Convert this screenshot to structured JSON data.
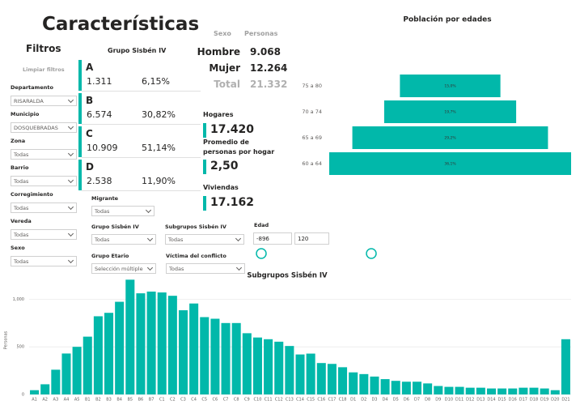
{
  "title": "Características",
  "filters": {
    "title": "Filtros",
    "clear": "Limpiar filtros",
    "items": [
      {
        "label": "Departamento",
        "value": "RISARALDA"
      },
      {
        "label": "Municipio",
        "value": "DOSQUEBRADAS"
      },
      {
        "label": "Zona",
        "value": "Todas"
      },
      {
        "label": "Barrio",
        "value": "Todas"
      },
      {
        "label": "Corregimiento",
        "value": "Todas"
      },
      {
        "label": "Vereda",
        "value": "Todas"
      },
      {
        "label": "Sexo",
        "value": "Todas"
      }
    ]
  },
  "grupo": {
    "title": "Grupo Sisbén IV",
    "cards": [
      {
        "letter": "A",
        "count": "1.311",
        "pct": "6,15%"
      },
      {
        "letter": "B",
        "count": "6.574",
        "pct": "30,82%"
      },
      {
        "letter": "C",
        "count": "10.909",
        "pct": "51,14%"
      },
      {
        "letter": "D",
        "count": "2.538",
        "pct": "11,90%"
      }
    ]
  },
  "sexo": {
    "headers": [
      "Sexo",
      "Personas"
    ],
    "rows": [
      [
        "Hombre",
        "9.068"
      ],
      [
        "Mujer",
        "12.264"
      ],
      [
        "Total",
        "21.332"
      ]
    ]
  },
  "kpis": [
    {
      "label": "Hogares",
      "value": "17.420"
    },
    {
      "label": "Promedio de personas por hogar",
      "value": "2,50"
    },
    {
      "label": "Viviendas",
      "value": "17.162"
    }
  ],
  "slicers": [
    {
      "label": "Migrante",
      "value": "Todas"
    },
    {
      "label": "Grupo Sisbén IV",
      "value": "Todas"
    },
    {
      "label": "Subgrupos Sisbén IV",
      "value": "Todas"
    },
    {
      "label": "Grupo Etario",
      "value": "Selección múltiple"
    },
    {
      "label": "Víctima del conflicto",
      "value": "Todas"
    }
  ],
  "edad": {
    "label": "Edad",
    "min": "-896",
    "max": "120"
  },
  "chart_data": [
    {
      "type": "bar",
      "orientation": "horizontal",
      "align": "center",
      "title": "Población por edades",
      "categories": [
        "75 a 80",
        "70 a 74",
        "65 a 69",
        "60 a 64"
      ],
      "values": [
        15.0,
        19.7,
        29.2,
        36.1
      ],
      "value_labels": [
        "15,0%",
        "19,7%",
        "29,2%",
        "36,1%"
      ],
      "color": "#01b8aa"
    },
    {
      "type": "bar",
      "orientation": "vertical",
      "title": "Subgrupos Sisbén IV",
      "ylabel": "Personas",
      "categories": [
        "A1",
        "A2",
        "A3",
        "A4",
        "A5",
        "B1",
        "B2",
        "B3",
        "B4",
        "B5",
        "B6",
        "B7",
        "C1",
        "C2",
        "C3",
        "C4",
        "C5",
        "C6",
        "C7",
        "C8",
        "C9",
        "C10",
        "C11",
        "C12",
        "C13",
        "C14",
        "C15",
        "C16",
        "C17",
        "C18",
        "D1",
        "D2",
        "D3",
        "D4",
        "D5",
        "D6",
        "D7",
        "D8",
        "D9",
        "D10",
        "D11",
        "D12",
        "D13",
        "D14",
        "D15",
        "D16",
        "D17",
        "D18",
        "D19",
        "D20",
        "D21"
      ],
      "values": [
        45,
        107,
        260,
        430,
        500,
        607,
        821,
        857,
        973,
        1205,
        1062,
        1080,
        1071,
        1036,
        884,
        955,
        812,
        795,
        750,
        750,
        643,
        598,
        580,
        554,
        509,
        420,
        429,
        330,
        321,
        286,
        232,
        214,
        188,
        161,
        143,
        134,
        134,
        116,
        89,
        80,
        80,
        71,
        71,
        63,
        63,
        63,
        71,
        71,
        63,
        45,
        580
      ],
      "color": "#01b8aa",
      "ylim": [
        0,
        1250
      ],
      "yticks": [
        0,
        500,
        {
          "value": 1000,
          "label": "1,000"
        }
      ],
      "grid": true
    }
  ]
}
